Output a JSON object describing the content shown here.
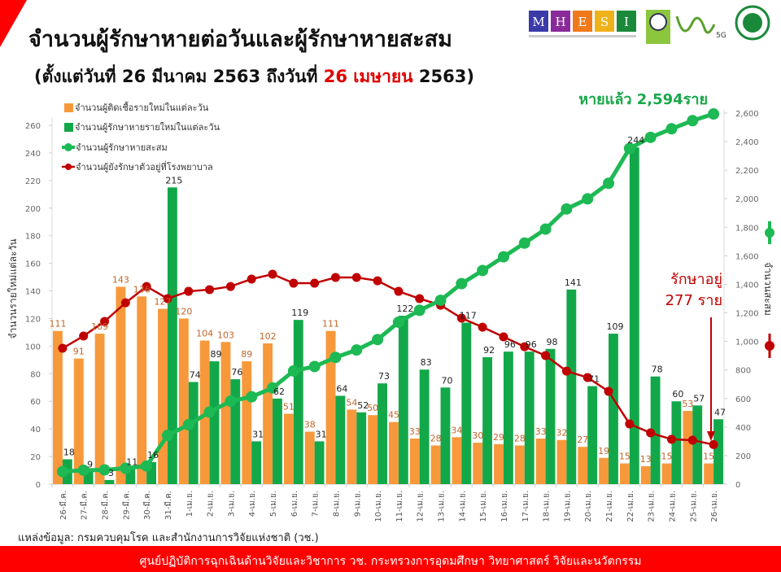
{
  "header": {
    "title": "จำนวนผู้รักษาหายต่อวันและผู้รักษาหายสะสม",
    "subtitle_prefix": "(ตั้งแต่วันที่ 26 มีนาคม 2563 ถึงวันที่ ",
    "subtitle_highlight": "26 เมษายน",
    "subtitle_suffix": " 2563)",
    "logos": [
      "MHESI",
      "วช. NRCT",
      "๖๐ 5G",
      "กรมควบคุมโรค"
    ],
    "logo_caption": "กระทรวงการอุดมศึกษา วิทยาศาสตร์ วิจัยและนวัตกรรม"
  },
  "colors": {
    "new_cases": "#f7993a",
    "recovered_daily": "#12a84a",
    "recovered_cum": "#1db954",
    "hospitalized": "#c00000",
    "banner": "#ff0000",
    "highlight": "#e00000"
  },
  "chart_data": {
    "type": "bar+line",
    "categories": [
      "26-มี.ค.",
      "27-มี.ค.",
      "28-มี.ค.",
      "29-มี.ค.",
      "30-มี.ค.",
      "31-มี.ค.",
      "1-เม.ย.",
      "2-เม.ย.",
      "3-เม.ย.",
      "4-เม.ย.",
      "5-เม.ย.",
      "6-เม.ย.",
      "7-เม.ย.",
      "8-เม.ย.",
      "9-เม.ย.",
      "10-เม.ย.",
      "11-เม.ย.",
      "12-เม.ย.",
      "13-เม.ย.",
      "14-เม.ย.",
      "15-เม.ย.",
      "16-เม.ย.",
      "17-เม.ย.",
      "18-เม.ย.",
      "19-เม.ย.",
      "20-เม.ย.",
      "21-เม.ย.",
      "22-เม.ย.",
      "23-เม.ย.",
      "24-เม.ย.",
      "25-เม.ย.",
      "26-เม.ย."
    ],
    "series": [
      {
        "name": "จำนวนผู้ติดเชื้อรายใหม่ในแต่ละวัน",
        "type": "bar",
        "axis": "left",
        "values": [
          111,
          91,
          109,
          143,
          136,
          127,
          120,
          104,
          103,
          89,
          102,
          51,
          38,
          111,
          54,
          50,
          45,
          33,
          28,
          34,
          30,
          29,
          28,
          33,
          32,
          27,
          19,
          15,
          13,
          15,
          53,
          15
        ]
      },
      {
        "name": "จำนวนผู้รักษาหายรายใหม่ในแต่ละวัน",
        "type": "bar",
        "axis": "left",
        "values": [
          18,
          9,
          3,
          11,
          16,
          215,
          74,
          89,
          76,
          31,
          62,
          119,
          31,
          64,
          52,
          73,
          122,
          83,
          70,
          117,
          92,
          96,
          96,
          98,
          141,
          71,
          109,
          244,
          78,
          60,
          57,
          47
        ]
      },
      {
        "name": "จำนวนผู้รักษาหายสะสม",
        "type": "line",
        "axis": "right",
        "values": [
          88,
          97,
          100,
          111,
          127,
          342,
          416,
          505,
          581,
          612,
          674,
          793,
          824,
          888,
          940,
          1013,
          1135,
          1218,
          1288,
          1405,
          1497,
          1593,
          1689,
          1787,
          1928,
          1999,
          2108,
          2352,
          2430,
          2490,
          2547,
          2594
        ]
      },
      {
        "name": "จำนวนผู้ยังรักษาตัวอยู่ที่โรงพยาบาล",
        "type": "line",
        "axis": "right",
        "values": [
          952,
          1038,
          1140,
          1271,
          1385,
          1300,
          1351,
          1363,
          1385,
          1437,
          1471,
          1408,
          1408,
          1448,
          1448,
          1425,
          1351,
          1300,
          1254,
          1163,
          1100,
          1032,
          963,
          901,
          792,
          747,
          650,
          422,
          359,
          314,
          308,
          277
        ]
      }
    ],
    "ylabel_left": "จำนวนรายใหม่แต่ละวัน",
    "ylabel_right": "จำนวนสะสม",
    "ylim_left": [
      0,
      260
    ],
    "ylim_right": [
      0,
      2600
    ],
    "yticks_left": [
      0,
      20,
      40,
      60,
      80,
      100,
      120,
      140,
      160,
      180,
      200,
      220,
      240,
      260
    ],
    "yticks_right": [
      "0",
      "200",
      "400",
      "600",
      "800",
      "1,000",
      "1,200",
      "1,400",
      "1,600",
      "1,800",
      "2,000",
      "2,200",
      "2,400",
      "2,600"
    ],
    "legend_position": "top-left",
    "annotations": {
      "recovered_total": "หายแล้ว 2,594ราย",
      "in_treatment_1": "รักษาอยู่",
      "in_treatment_2": "277 ราย"
    }
  },
  "footer": {
    "source": "แหล่งข้อมูล: กรมควบคุมโรค และสำนักงานการวิจัยแห่งชาติ (วช.)",
    "banner": "ศูนย์ปฏิบัติการฉุกเฉินด้านวิจัยและวิชาการ   วช.   กระทรวงการอุดมศึกษา วิทยาศาสตร์ วิจัยและนวัตกรรม"
  }
}
